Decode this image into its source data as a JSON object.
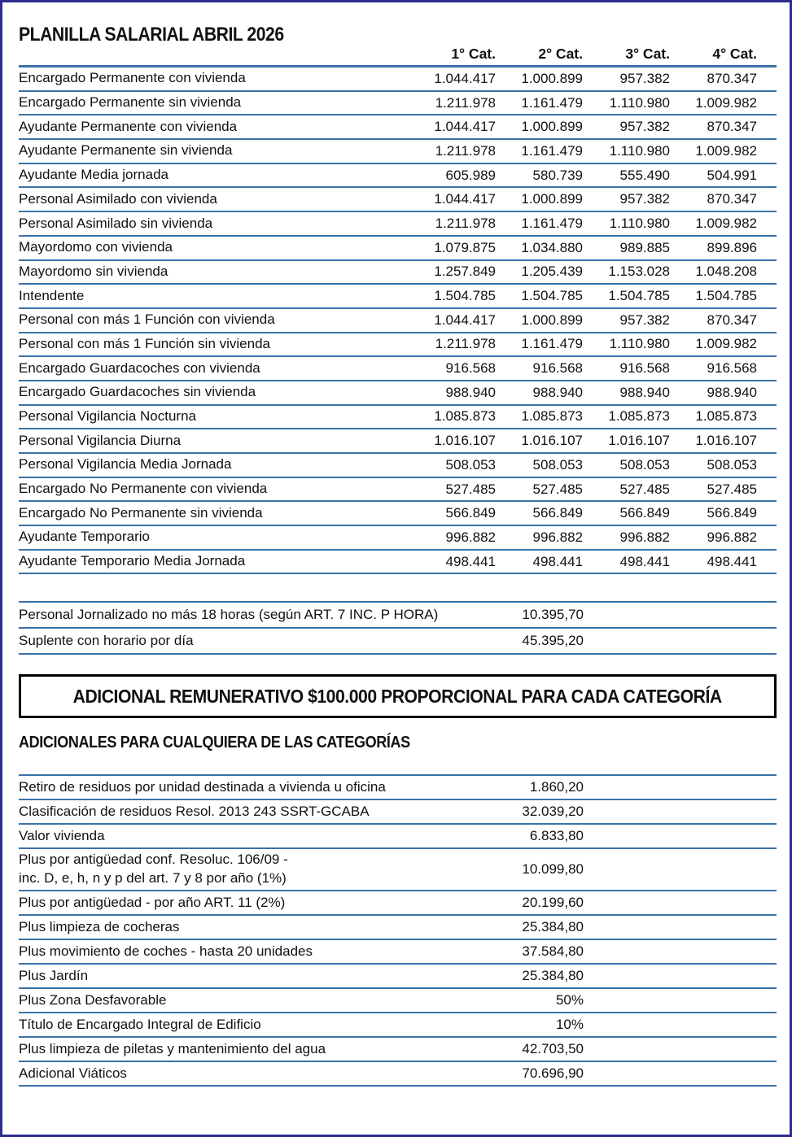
{
  "page": {
    "title": "PLANILLA SALARIAL ABRIL 2026",
    "border_color": "#2d2d92",
    "rule_color": "#3a72a8",
    "text_color": "#111111"
  },
  "salary_table": {
    "columns": [
      "1° Cat.",
      "2° Cat.",
      "3° Cat.",
      "4° Cat."
    ],
    "rows": [
      {
        "label": "Encargado Permanente con vivienda",
        "values": [
          "1.044.417",
          "1.000.899",
          "957.382",
          "870.347"
        ]
      },
      {
        "label": "Encargado Permanente sin vivienda",
        "values": [
          "1.211.978",
          "1.161.479",
          "1.110.980",
          "1.009.982"
        ]
      },
      {
        "label": "Ayudante Permanente con vivienda",
        "values": [
          "1.044.417",
          "1.000.899",
          "957.382",
          "870.347"
        ]
      },
      {
        "label": "Ayudante Permanente sin vivienda",
        "values": [
          "1.211.978",
          "1.161.479",
          "1.110.980",
          "1.009.982"
        ]
      },
      {
        "label": "Ayudante Media jornada",
        "values": [
          "605.989",
          "580.739",
          "555.490",
          "504.991"
        ]
      },
      {
        "label": "Personal Asimilado con vivienda",
        "values": [
          "1.044.417",
          "1.000.899",
          "957.382",
          "870.347"
        ]
      },
      {
        "label": "Personal Asimilado sin vivienda",
        "values": [
          "1.211.978",
          "1.161.479",
          "1.110.980",
          "1.009.982"
        ]
      },
      {
        "label": "Mayordomo con vivienda",
        "values": [
          "1.079.875",
          "1.034.880",
          "989.885",
          "899.896"
        ]
      },
      {
        "label": "Mayordomo sin vivienda",
        "values": [
          "1.257.849",
          "1.205.439",
          "1.153.028",
          "1.048.208"
        ]
      },
      {
        "label": "Intendente",
        "values": [
          "1.504.785",
          "1.504.785",
          "1.504.785",
          "1.504.785"
        ]
      },
      {
        "label": "Personal con más 1 Función con vivienda",
        "values": [
          "1.044.417",
          "1.000.899",
          "957.382",
          "870.347"
        ]
      },
      {
        "label": "Personal con más 1 Función sin vivienda",
        "values": [
          "1.211.978",
          "1.161.479",
          "1.110.980",
          "1.009.982"
        ]
      },
      {
        "label": "Encargado Guardacoches con vivienda",
        "values": [
          "916.568",
          "916.568",
          "916.568",
          "916.568"
        ]
      },
      {
        "label": "Encargado Guardacoches sin vivienda",
        "values": [
          "988.940",
          "988.940",
          "988.940",
          "988.940"
        ]
      },
      {
        "label": "Personal Vigilancia Nocturna",
        "values": [
          "1.085.873",
          "1.085.873",
          "1.085.873",
          "1.085.873"
        ]
      },
      {
        "label": "Personal Vigilancia Diurna",
        "values": [
          "1.016.107",
          "1.016.107",
          "1.016.107",
          "1.016.107"
        ]
      },
      {
        "label": "Personal Vigilancia Media Jornada",
        "values": [
          "508.053",
          "508.053",
          "508.053",
          "508.053"
        ]
      },
      {
        "label": "Encargado No Permanente con vivienda",
        "values": [
          "527.485",
          "527.485",
          "527.485",
          "527.485"
        ]
      },
      {
        "label": "Encargado No Permanente sin vivienda",
        "values": [
          "566.849",
          "566.849",
          "566.849",
          "566.849"
        ]
      },
      {
        "label": "Ayudante Temporario",
        "values": [
          "996.882",
          "996.882",
          "996.882",
          "996.882"
        ]
      },
      {
        "label": "Ayudante Temporario Media Jornada",
        "values": [
          "498.441",
          "498.441",
          "498.441",
          "498.441"
        ]
      }
    ]
  },
  "hourly_table": {
    "rows": [
      {
        "label": "Personal Jornalizado no más 18 horas (según ART. 7 INC. P HORA)",
        "value": "10.395,70"
      },
      {
        "label": "Suplente con horario por día",
        "value": "45.395,20"
      }
    ]
  },
  "banner": {
    "text": "ADICIONAL REMUNERATIVO $100.000 PROPORCIONAL PARA CADA CATEGORÍA"
  },
  "adicionales": {
    "heading": "ADICIONALES PARA CUALQUIERA DE LAS CATEGORÍAS",
    "rows": [
      {
        "label": "Retiro de residuos por unidad destinada a vivienda u oficina",
        "value": "1.860,20"
      },
      {
        "label": "Clasificación de residuos Resol. 2013 243 SSRT-GCABA",
        "value": "32.039,20"
      },
      {
        "label": "Valor vivienda",
        "value": "6.833,80"
      },
      {
        "label": "Plus por antigüedad conf. Resoluc. 106/09 -\ninc. D, e, h, n y p del art. 7 y 8 por año (1%)",
        "value": "10.099,80"
      },
      {
        "label": "Plus por antigüedad - por año ART. 11 (2%)",
        "value": "20.199,60"
      },
      {
        "label": "Plus limpieza de cocheras",
        "value": "25.384,80"
      },
      {
        "label": "Plus movimiento de coches - hasta 20 unidades",
        "value": "37.584,80"
      },
      {
        "label": "Plus Jardín",
        "value": "25.384,80"
      },
      {
        "label": "Plus Zona Desfavorable",
        "value": "50%"
      },
      {
        "label": "Título de Encargado Integral de Edificio",
        "value": "10%"
      },
      {
        "label": "Plus limpieza de piletas y mantenimiento del agua",
        "value": "42.703,50"
      },
      {
        "label": "Adicional Viáticos",
        "value": "70.696,90"
      }
    ]
  }
}
